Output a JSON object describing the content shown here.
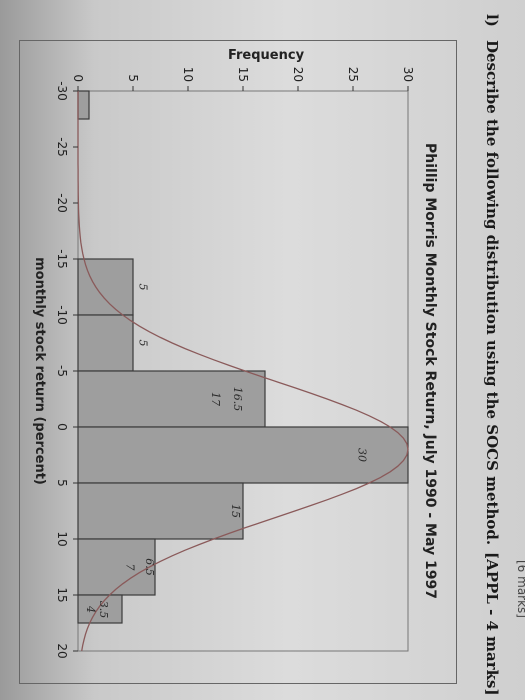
{
  "header_fragment": "[6 marks]",
  "question": {
    "number": "l)",
    "text": "Describe the following distribution using the SOCS method.",
    "marks": "[APPL - 4 marks]"
  },
  "colors": {
    "bar_fill": "#9e9e9e",
    "bar_stroke": "#3a3a3a",
    "curve": "#8a5a5a",
    "ink": "#222222"
  },
  "chart_data": {
    "type": "bar",
    "title": "Phillip Morris Monthly Stock Return, July 1990 - May 1997",
    "xlabel": "monthly stock return (percent)",
    "ylabel": "Frequency",
    "xlim": [
      -30,
      20
    ],
    "ylim": [
      0,
      30
    ],
    "x_ticks": [
      -30,
      -25,
      -20,
      -15,
      -10,
      -5,
      0,
      5,
      10,
      15,
      20
    ],
    "y_ticks": [
      0,
      5,
      10,
      15,
      20,
      25,
      30
    ],
    "bins": [
      {
        "start": -30,
        "end": -27.5,
        "value": 1
      },
      {
        "start": -27.5,
        "end": -15,
        "value": 0
      },
      {
        "start": -15,
        "end": -10,
        "value": 5
      },
      {
        "start": -10,
        "end": -5,
        "value": 5
      },
      {
        "start": -5,
        "end": 0,
        "value": 17
      },
      {
        "start": 0,
        "end": 5,
        "value": 30
      },
      {
        "start": 5,
        "end": 10,
        "value": 15
      },
      {
        "start": 10,
        "end": 15,
        "value": 7
      },
      {
        "start": 15,
        "end": 17.5,
        "value": 4
      }
    ],
    "curve": {
      "type": "normal",
      "mean": 2,
      "sd": 6,
      "peak": 30
    },
    "handwritten_notes": [
      "5",
      "5",
      "16.5",
      "17",
      "30",
      "15",
      "6.5",
      "7",
      "3.5",
      "4"
    ],
    "grid": false
  }
}
